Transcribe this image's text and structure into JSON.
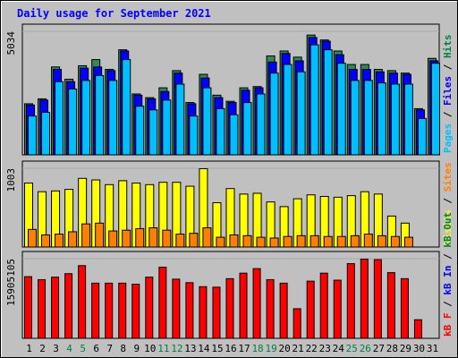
{
  "chart_data": {
    "type": "bar",
    "title": "Daily usage for September 2021",
    "categories": [
      "1",
      "2",
      "3",
      "4",
      "5",
      "6",
      "7",
      "8",
      "9",
      "10",
      "11",
      "12",
      "13",
      "14",
      "15",
      "16",
      "17",
      "18",
      "19",
      "20",
      "21",
      "22",
      "23",
      "24",
      "25",
      "26",
      "27",
      "28",
      "29",
      "30",
      "31"
    ],
    "weekend_days": [
      "4",
      "5",
      "11",
      "12",
      "18",
      "19",
      "25",
      "26"
    ],
    "panels": [
      {
        "name": "pages-files-hits",
        "ytick": "5034",
        "ymax": 5034,
        "legend": [
          {
            "text": "Pages",
            "color": "#00c0ff"
          },
          {
            "text": " / ",
            "color": "#000000"
          },
          {
            "text": "Files",
            "color": "#0000ff"
          },
          {
            "text": " / ",
            "color": "#000000"
          },
          {
            "text": "Hits",
            "color": "#008040"
          }
        ],
        "series": [
          {
            "name": "Hits",
            "color": "#2e8b57",
            "values": [
              2100,
              2300,
              3600,
              3100,
              3650,
              3900,
              3500,
              4300,
              2500,
              2350,
              2750,
              3450,
              2150,
              3300,
              2450,
              2200,
              2750,
              2800,
              4050,
              4250,
              4000,
              4900,
              4700,
              4250,
              3700,
              3700,
              3500,
              3450,
              3350,
              1900,
              3950
            ]
          },
          {
            "name": "Files",
            "color": "#0000ff",
            "values": [
              2050,
              2250,
              3500,
              3000,
              3550,
              3600,
              3450,
              4250,
              2450,
              2300,
              2600,
              3350,
              2100,
              3150,
              2350,
              2150,
              2650,
              2750,
              3800,
              4150,
              3850,
              4800,
              4650,
              4100,
              3500,
              3500,
              3400,
              3350,
              3300,
              1850,
              3850
            ]
          },
          {
            "name": "Pages",
            "color": "#00bfff",
            "values": [
              1600,
              1750,
              3000,
              2700,
              3050,
              3250,
              3050,
              3900,
              2000,
              1850,
              2250,
              2900,
              1600,
              2750,
              1900,
              1650,
              2150,
              2500,
              3350,
              3700,
              3400,
              4500,
              4300,
              3750,
              3050,
              3050,
              2950,
              2900,
              2900,
              1500,
              3750
            ]
          }
        ]
      },
      {
        "name": "visits-sites",
        "ytick": "1003",
        "ymax": 1003,
        "legend": [
          {
            "text": "Visits",
            "color": "#ffff00"
          },
          {
            "text": " / ",
            "color": "#000000"
          },
          {
            "text": "Sites",
            "color": "#ff8000"
          }
        ],
        "series": [
          {
            "name": "Visits",
            "color": "#ffff00",
            "values": [
              820,
              710,
              720,
              740,
              880,
              860,
              800,
              850,
              820,
              800,
              830,
              830,
              780,
              1003,
              570,
              750,
              680,
              690,
              580,
              520,
              620,
              670,
              650,
              640,
              660,
              710,
              680,
              400,
              310,
              0,
              0
            ]
          },
          {
            "name": "Sites",
            "color": "#ff8000",
            "values": [
              230,
              160,
              170,
              200,
              300,
              310,
              210,
              220,
              240,
              250,
              220,
              170,
              180,
              250,
              130,
              160,
              150,
              130,
              120,
              140,
              150,
              150,
              140,
              140,
              150,
              170,
              150,
              140,
              130,
              0,
              0
            ]
          }
        ]
      },
      {
        "name": "kbf-kbin-kbout",
        "ytick": "15905105",
        "ymax": 15905105,
        "legend": [
          {
            "text": "kB F",
            "color": "#ff0000"
          },
          {
            "text": " / ",
            "color": "#000000"
          },
          {
            "text": "kB In",
            "color": "#0000ff"
          },
          {
            "text": " / ",
            "color": "#000000"
          },
          {
            "text": "kB Out",
            "color": "#008040"
          }
        ],
        "series": [
          {
            "name": "kB F",
            "color": "#ff0000",
            "values": [
              12400000,
              11800000,
              12300000,
              13000000,
              14600000,
              11100000,
              11100000,
              11100000,
              10900000,
              12300000,
              14300000,
              11900000,
              11200000,
              10400000,
              10300000,
              12000000,
              13100000,
              14000000,
              11800000,
              11100000,
              6000000,
              11500000,
              13100000,
              11700000,
              15000000,
              15905105,
              15800000,
              13200000,
              12000000,
              3800000,
              0
            ]
          }
        ]
      }
    ]
  }
}
